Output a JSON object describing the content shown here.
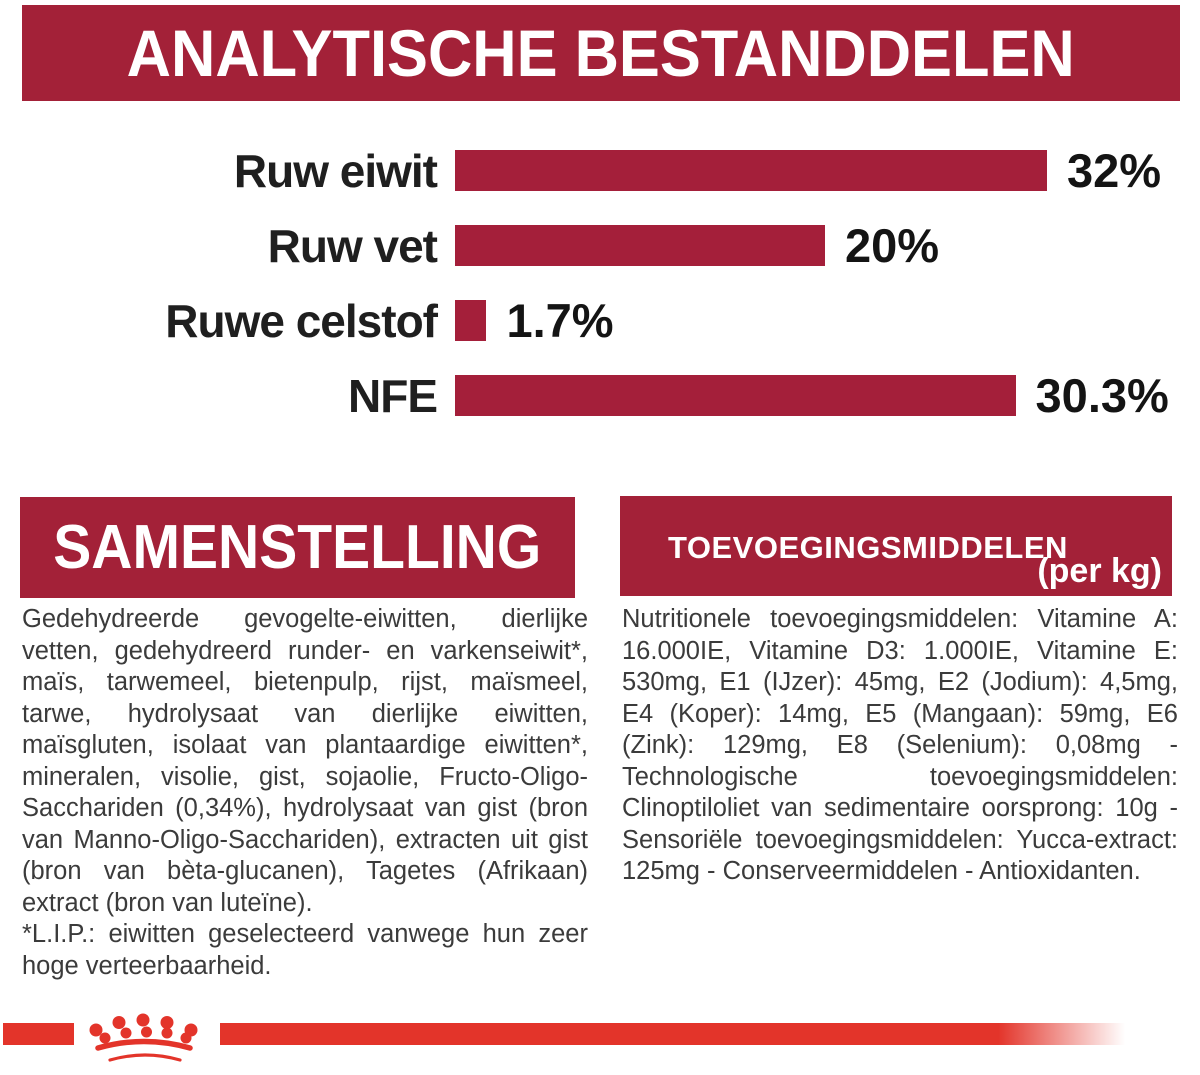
{
  "colors": {
    "dark_red": "#a32138",
    "bright_red": "#e3342a",
    "body_text": "#3b3b3b",
    "chart_label_text": "#1f1f1f",
    "header_text": "#ffffff"
  },
  "header": {
    "title": "ANALYTISCHE BESTANDDELEN"
  },
  "chart_data": {
    "type": "bar",
    "orientation": "horizontal",
    "title": "ANALYTISCHE BESTANDDELEN",
    "categories": [
      "Ruw eiwit",
      "Ruw vet",
      "Ruwe celstof",
      "NFE"
    ],
    "values": [
      32,
      20,
      1.7,
      30.3
    ],
    "value_labels": [
      "32%",
      "20%",
      "1.7%",
      "30.3%"
    ],
    "xlim": [
      0,
      32
    ],
    "bar_color": "#a41f3a",
    "grid": false,
    "legend": "none",
    "value_label_position": "right-of-bar"
  },
  "composition": {
    "title": "SAMENSTELLING",
    "body": "Gedehydreerde gevogelte-eiwitten, dierlijke vetten, gedehydreerd runder- en varkenseiwit*, maïs, tarwemeel, bietenpulp, rijst, maïsmeel, tarwe, hydrolysaat van dierlijke eiwitten, maïsgluten, isolaat van plantaardige eiwitten*, mineralen, visolie, gist, sojaolie, Fructo-Oligo-Sacchariden (0,34%), hydrolysaat van gist (bron van Manno-Oligo-Sacchariden), extracten uit gist (bron van bèta-glucanen), Tagetes (Afrikaan) extract (bron van luteïne).",
    "footnote": "*L.I.P.: eiwitten geselecteerd vanwege hun zeer hoge verteerbaarheid."
  },
  "additives": {
    "title": "TOEVOEGINGSMIDDELEN",
    "unit": "(per kg)",
    "body": "Nutritionele toevoegingsmiddelen: Vitamine A: 16.000IE, Vitamine D3: 1.000IE, Vitamine E: 530mg, E1 (IJzer): 45mg, E2 (Jodium): 4,5mg, E4 (Koper): 14mg, E5 (Mangaan): 59mg, E6 (Zink): 129mg, E8 (Selenium): 0,08mg - Technologische toevoegingsmiddelen: Clinoptiloliet van sedimentaire oorsprong: 10g - Sensoriële toevoegingsmiddelen: Yucca-extract: 125mg - Conserveermiddelen - Antioxidanten."
  },
  "footer": {
    "logo_icon": "royal-canin-crown"
  }
}
